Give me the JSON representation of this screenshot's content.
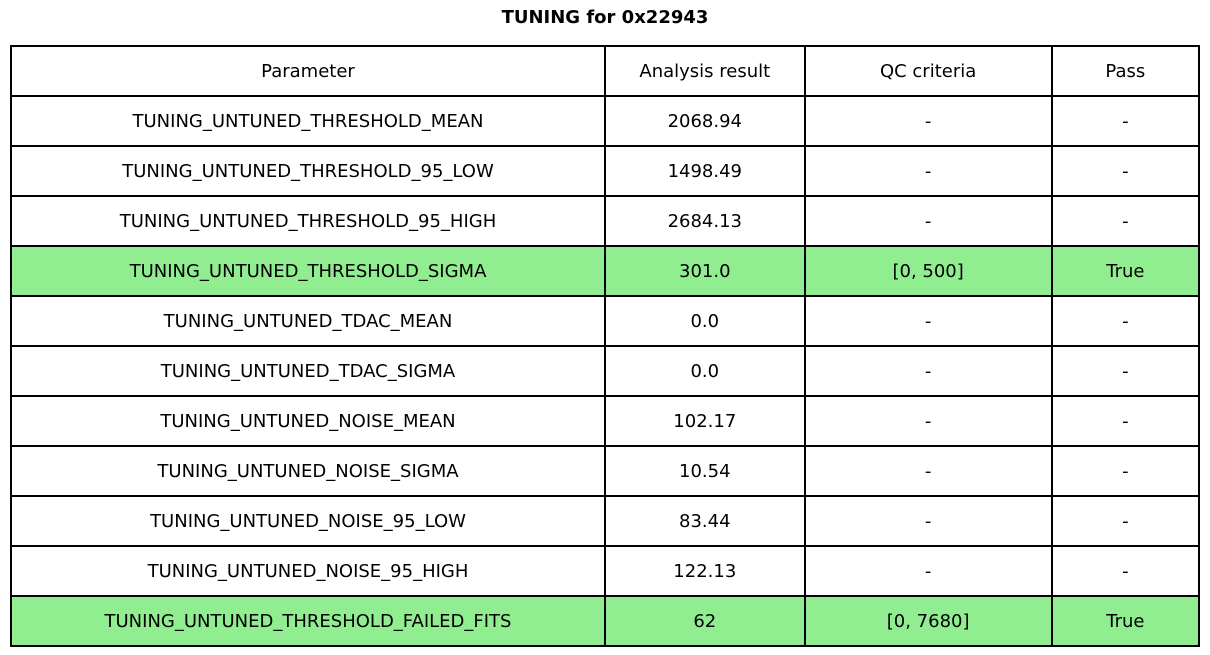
{
  "title": "TUNING for 0x22943",
  "chart_data": {
    "type": "table",
    "title": "TUNING for 0x22943",
    "columns": [
      "Parameter",
      "Analysis result",
      "QC criteria",
      "Pass"
    ],
    "rows": [
      [
        "TUNING_UNTUNED_THRESHOLD_MEAN",
        "2068.94",
        "-",
        "-"
      ],
      [
        "TUNING_UNTUNED_THRESHOLD_95_LOW",
        "1498.49",
        "-",
        "-"
      ],
      [
        "TUNING_UNTUNED_THRESHOLD_95_HIGH",
        "2684.13",
        "-",
        "-"
      ],
      [
        "TUNING_UNTUNED_THRESHOLD_SIGMA",
        "301.0",
        "[0, 500]",
        "True"
      ],
      [
        "TUNING_UNTUNED_TDAC_MEAN",
        "0.0",
        "-",
        "-"
      ],
      [
        "TUNING_UNTUNED_TDAC_SIGMA",
        "0.0",
        "-",
        "-"
      ],
      [
        "TUNING_UNTUNED_NOISE_MEAN",
        "102.17",
        "-",
        "-"
      ],
      [
        "TUNING_UNTUNED_NOISE_SIGMA",
        "10.54",
        "-",
        "-"
      ],
      [
        "TUNING_UNTUNED_NOISE_95_LOW",
        "83.44",
        "-",
        "-"
      ],
      [
        "TUNING_UNTUNED_NOISE_95_HIGH",
        "122.13",
        "-",
        "-"
      ],
      [
        "TUNING_UNTUNED_THRESHOLD_FAILED_FITS",
        "62",
        "[0, 7680]",
        "True"
      ]
    ],
    "highlighted_rows": [
      3,
      10
    ],
    "highlight_color": "#90EE90",
    "grid_color": "#000000",
    "background_color": "#ffffff"
  }
}
